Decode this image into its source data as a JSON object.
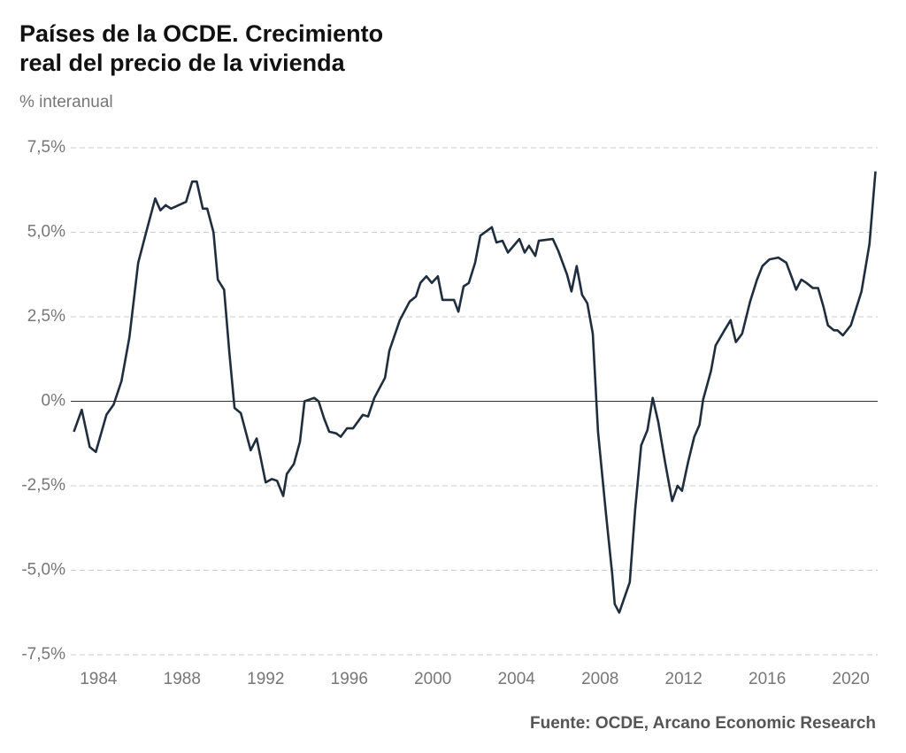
{
  "chart_data": {
    "type": "line",
    "title_lines": [
      "Países de la OCDE. Crecimiento",
      "real del precio de la vivienda"
    ],
    "subtitle": "% interanual",
    "source": "Fuente: OCDE, Arcano Economic Research",
    "xlim": [
      1982.8,
      2021.2
    ],
    "xticks": [
      1984,
      1988,
      1992,
      1996,
      2000,
      2004,
      2008,
      2012,
      2016,
      2020
    ],
    "ylim": [
      -7.5,
      7.5
    ],
    "yticks": [
      {
        "value": 7.5,
        "label": "7,5%"
      },
      {
        "value": 5,
        "label": "5,0%"
      },
      {
        "value": 2.5,
        "label": "2,5%"
      },
      {
        "value": 0,
        "label": "0%"
      },
      {
        "value": -2.5,
        "label": "-2,5%"
      },
      {
        "value": -5,
        "label": "-5,0%"
      },
      {
        "value": -7.5,
        "label": "-7,5%"
      }
    ],
    "grid": true,
    "series": [
      {
        "color": "#1f2d3d",
        "x": [
          1982.82,
          1983.2,
          1983.58,
          1983.87,
          1984.38,
          1984.72,
          1985.1,
          1985.48,
          1985.9,
          1986.28,
          1986.71,
          1986.96,
          1987.21,
          1987.47,
          1988.19,
          1988.48,
          1988.7,
          1988.99,
          1989.2,
          1989.5,
          1989.71,
          1990.01,
          1990.26,
          1990.51,
          1990.81,
          1991.28,
          1991.57,
          1992.0,
          1992.29,
          1992.54,
          1992.84,
          1993.01,
          1993.35,
          1993.64,
          1993.86,
          1994.32,
          1994.53,
          1994.79,
          1995.04,
          1995.38,
          1995.59,
          1995.89,
          1996.18,
          1996.65,
          1996.9,
          1997.2,
          1997.71,
          1997.92,
          1998.42,
          1998.89,
          1999.19,
          1999.4,
          1999.69,
          1999.95,
          2000.24,
          2000.46,
          2001.01,
          2001.22,
          2001.47,
          2001.72,
          2002.02,
          2002.27,
          2002.82,
          2003.04,
          2003.33,
          2003.59,
          2004.14,
          2004.39,
          2004.6,
          2004.9,
          2005.07,
          2005.74,
          2006.0,
          2006.42,
          2006.63,
          2006.88,
          2007.14,
          2007.39,
          2007.65,
          2007.9,
          2008.28,
          2008.58,
          2008.7,
          2008.92,
          2009.42,
          2009.68,
          2009.97,
          2010.27,
          2010.52,
          2010.78,
          2011.11,
          2011.45,
          2011.71,
          2011.92,
          2012.21,
          2012.51,
          2012.76,
          2012.93,
          2013.31,
          2013.53,
          2013.95,
          2014.25,
          2014.5,
          2014.8,
          2015.18,
          2015.51,
          2015.77,
          2016.11,
          2016.53,
          2016.91,
          2017.21,
          2017.38,
          2017.63,
          2017.88,
          2018.18,
          2018.43,
          2018.69,
          2018.9,
          2019.19,
          2019.36,
          2019.62,
          2020.0,
          2020.51,
          2020.89,
          2021.18
        ],
        "values": [
          -0.9,
          -0.25,
          -1.35,
          -1.5,
          -0.4,
          -0.1,
          0.6,
          1.9,
          4.1,
          5.0,
          6.0,
          5.65,
          5.8,
          5.7,
          5.9,
          6.5,
          6.5,
          5.7,
          5.7,
          5.0,
          3.6,
          3.3,
          1.45,
          -0.2,
          -0.35,
          -1.45,
          -1.1,
          -2.4,
          -2.3,
          -2.35,
          -2.8,
          -2.15,
          -1.85,
          -1.2,
          0,
          0.1,
          0,
          -0.5,
          -0.9,
          -0.95,
          -1.05,
          -0.8,
          -0.8,
          -0.4,
          -0.45,
          0.1,
          0.7,
          1.5,
          2.4,
          2.95,
          3.1,
          3.5,
          3.7,
          3.5,
          3.7,
          3.0,
          3.0,
          2.65,
          3.4,
          3.5,
          4.1,
          4.9,
          5.15,
          4.7,
          4.75,
          4.4,
          4.8,
          4.4,
          4.6,
          4.3,
          4.75,
          4.8,
          4.45,
          3.75,
          3.25,
          4.0,
          3.15,
          2.9,
          2.0,
          -0.9,
          -3.3,
          -5.1,
          -6.0,
          -6.25,
          -5.35,
          -3.2,
          -1.3,
          -0.85,
          0.1,
          -0.6,
          -1.8,
          -2.95,
          -2.5,
          -2.65,
          -1.8,
          -1.05,
          -0.7,
          0.05,
          0.9,
          1.65,
          2.1,
          2.4,
          1.75,
          2.0,
          2.95,
          3.6,
          4.0,
          4.2,
          4.25,
          4.1,
          3.6,
          3.3,
          3.6,
          3.5,
          3.35,
          3.35,
          2.8,
          2.25,
          2.1,
          2.1,
          1.95,
          2.25,
          3.25,
          4.65,
          6.8
        ]
      }
    ]
  }
}
